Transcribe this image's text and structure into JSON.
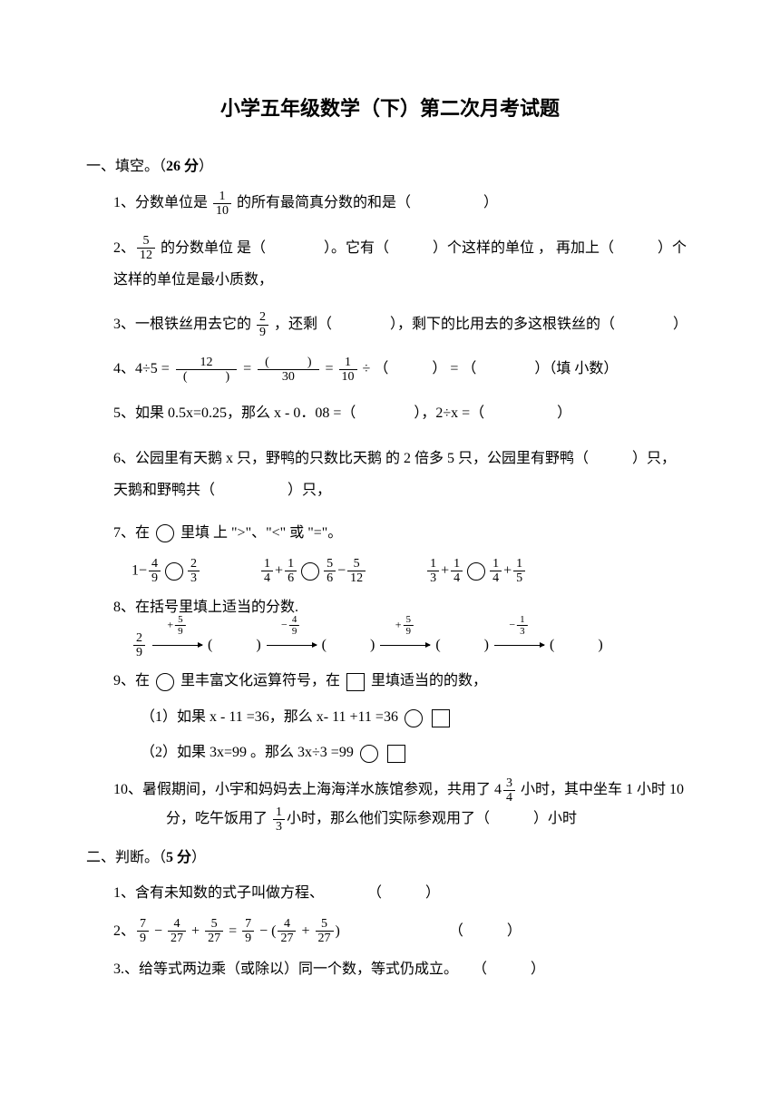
{
  "title": "小学五年级数学（下）第二次月考试题",
  "section1": {
    "header_prefix": "一、填空。（",
    "header_points": "26 分",
    "header_suffix": "）"
  },
  "q1": {
    "prefix": "1、分数单位是 ",
    "frac_num": "1",
    "frac_den": "10",
    "suffix": " 的所有最简真分数的和是（　　　　　）"
  },
  "q2": {
    "prefix": "2、",
    "frac_num": "5",
    "frac_den": "12",
    "mid1": " 的分数单位  是（　　　　）。它有（　　　）个这样的单位 ， 再加上（　　　）个",
    "line2": "这样的单位是最小质数，"
  },
  "q3": {
    "prefix": "3、一根铁丝用去它的 ",
    "frac_num": "2",
    "frac_den": "9",
    "suffix": " ，还剩（　　　　），剩下的比用去的多这根铁丝的（　　　　）"
  },
  "q4": {
    "prefix": "4、4÷5 = ",
    "f1_num": "12",
    "f1_den": "(　　　)",
    "eq1": " = ",
    "f2_num": "(　　　)",
    "f2_den": "30",
    "eq2": " = ",
    "f3_num": "1",
    "f3_den": "10",
    "suffix": " ÷ （　　　） = （　　　　）（填 小数）"
  },
  "q5": {
    "text": "5、如果 0.5x=0.25，那么 x - 0．08 =（　　　　），2÷x =（　　　　　）"
  },
  "q6": {
    "line1": "6、公园里有天鹅 x 只，野鸭的只数比天鹅  的 2 倍多 5 只，公园里有野鸭（　　　）只，",
    "line2": "天鹅和野鸭共（　　　　　）只，"
  },
  "q7": {
    "header": "7、在 ",
    "header_suffix": " 里填  上 \">\"、\"<\" 或 \"=\"。"
  },
  "q8": {
    "header": "8、在括号里填上适当的分数."
  },
  "q9": {
    "prefix": "9、在 ",
    "mid": " 里丰富文化运算符号，在 ",
    "suffix": " 里填适当的的数，",
    "sub1_prefix": "（1）如果 x - 11 =36，那么 x- 11 +11 =36 ",
    "sub2_prefix": "（2）如果 3x=99 。那么 3x÷3 =99 "
  },
  "q10": {
    "prefix": "10、暑假期间，小宇和妈妈去上海海洋水族馆参观，共用了 ",
    "mixed_whole": "4",
    "mixed_num": "3",
    "mixed_den": "4",
    "mid1": " 小时，其中坐车 1 小时  10",
    "line2_prefix": "分，吃午饭用了 ",
    "f2_num": "1",
    "f2_den": "3",
    "line2_suffix": "小时，那么他们实际参观用了（　　　）小时"
  },
  "section2": {
    "header_prefix": "二、判断。（",
    "header_points": "5 分",
    "header_suffix": "）"
  },
  "j1": {
    "text": "1、含有未知数的式子叫做方程、　　　　（　　　）"
  },
  "j2": {
    "prefix": "2、",
    "suffix": "　　　　　　　　（　　　）"
  },
  "j3": {
    "text": "3.、给等式两边乘（或除以）同一个数，等式仍成立。　　（　　　）"
  }
}
